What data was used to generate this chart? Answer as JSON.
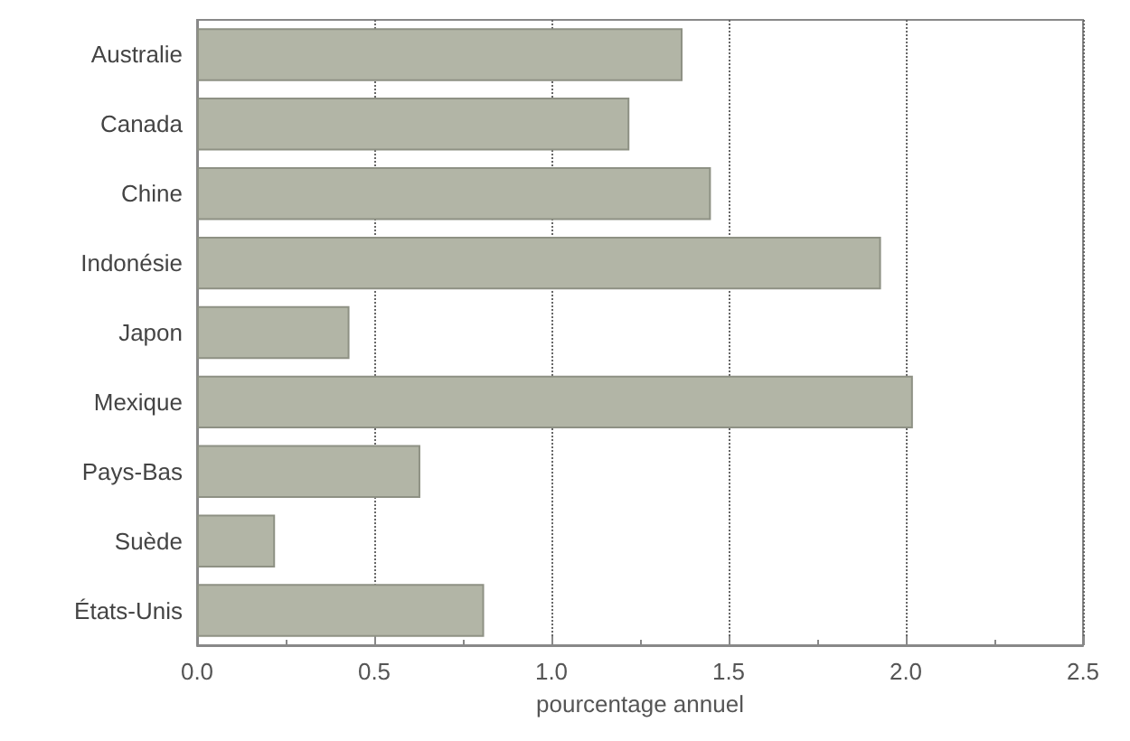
{
  "chart_data": {
    "type": "bar",
    "orientation": "horizontal",
    "xlabel": "pourcentage annuel",
    "categories": [
      "Australie",
      "Canada",
      "Chine",
      "Indonésie",
      "Japon",
      "Mexique",
      "Pays-Bas",
      "Suède",
      "États-Unis"
    ],
    "values": [
      1.37,
      1.22,
      1.45,
      1.93,
      0.43,
      2.02,
      0.63,
      0.22,
      0.81
    ],
    "color": "#b2b5a6",
    "xlim": [
      0,
      2.5
    ],
    "xticks": [
      {
        "value": 0,
        "label": "0.0"
      },
      0.5,
      {
        "value": 1,
        "label": "1.0"
      },
      1.5,
      {
        "value": 2,
        "label": "2.0"
      },
      2.5
    ],
    "grid": "x"
  }
}
